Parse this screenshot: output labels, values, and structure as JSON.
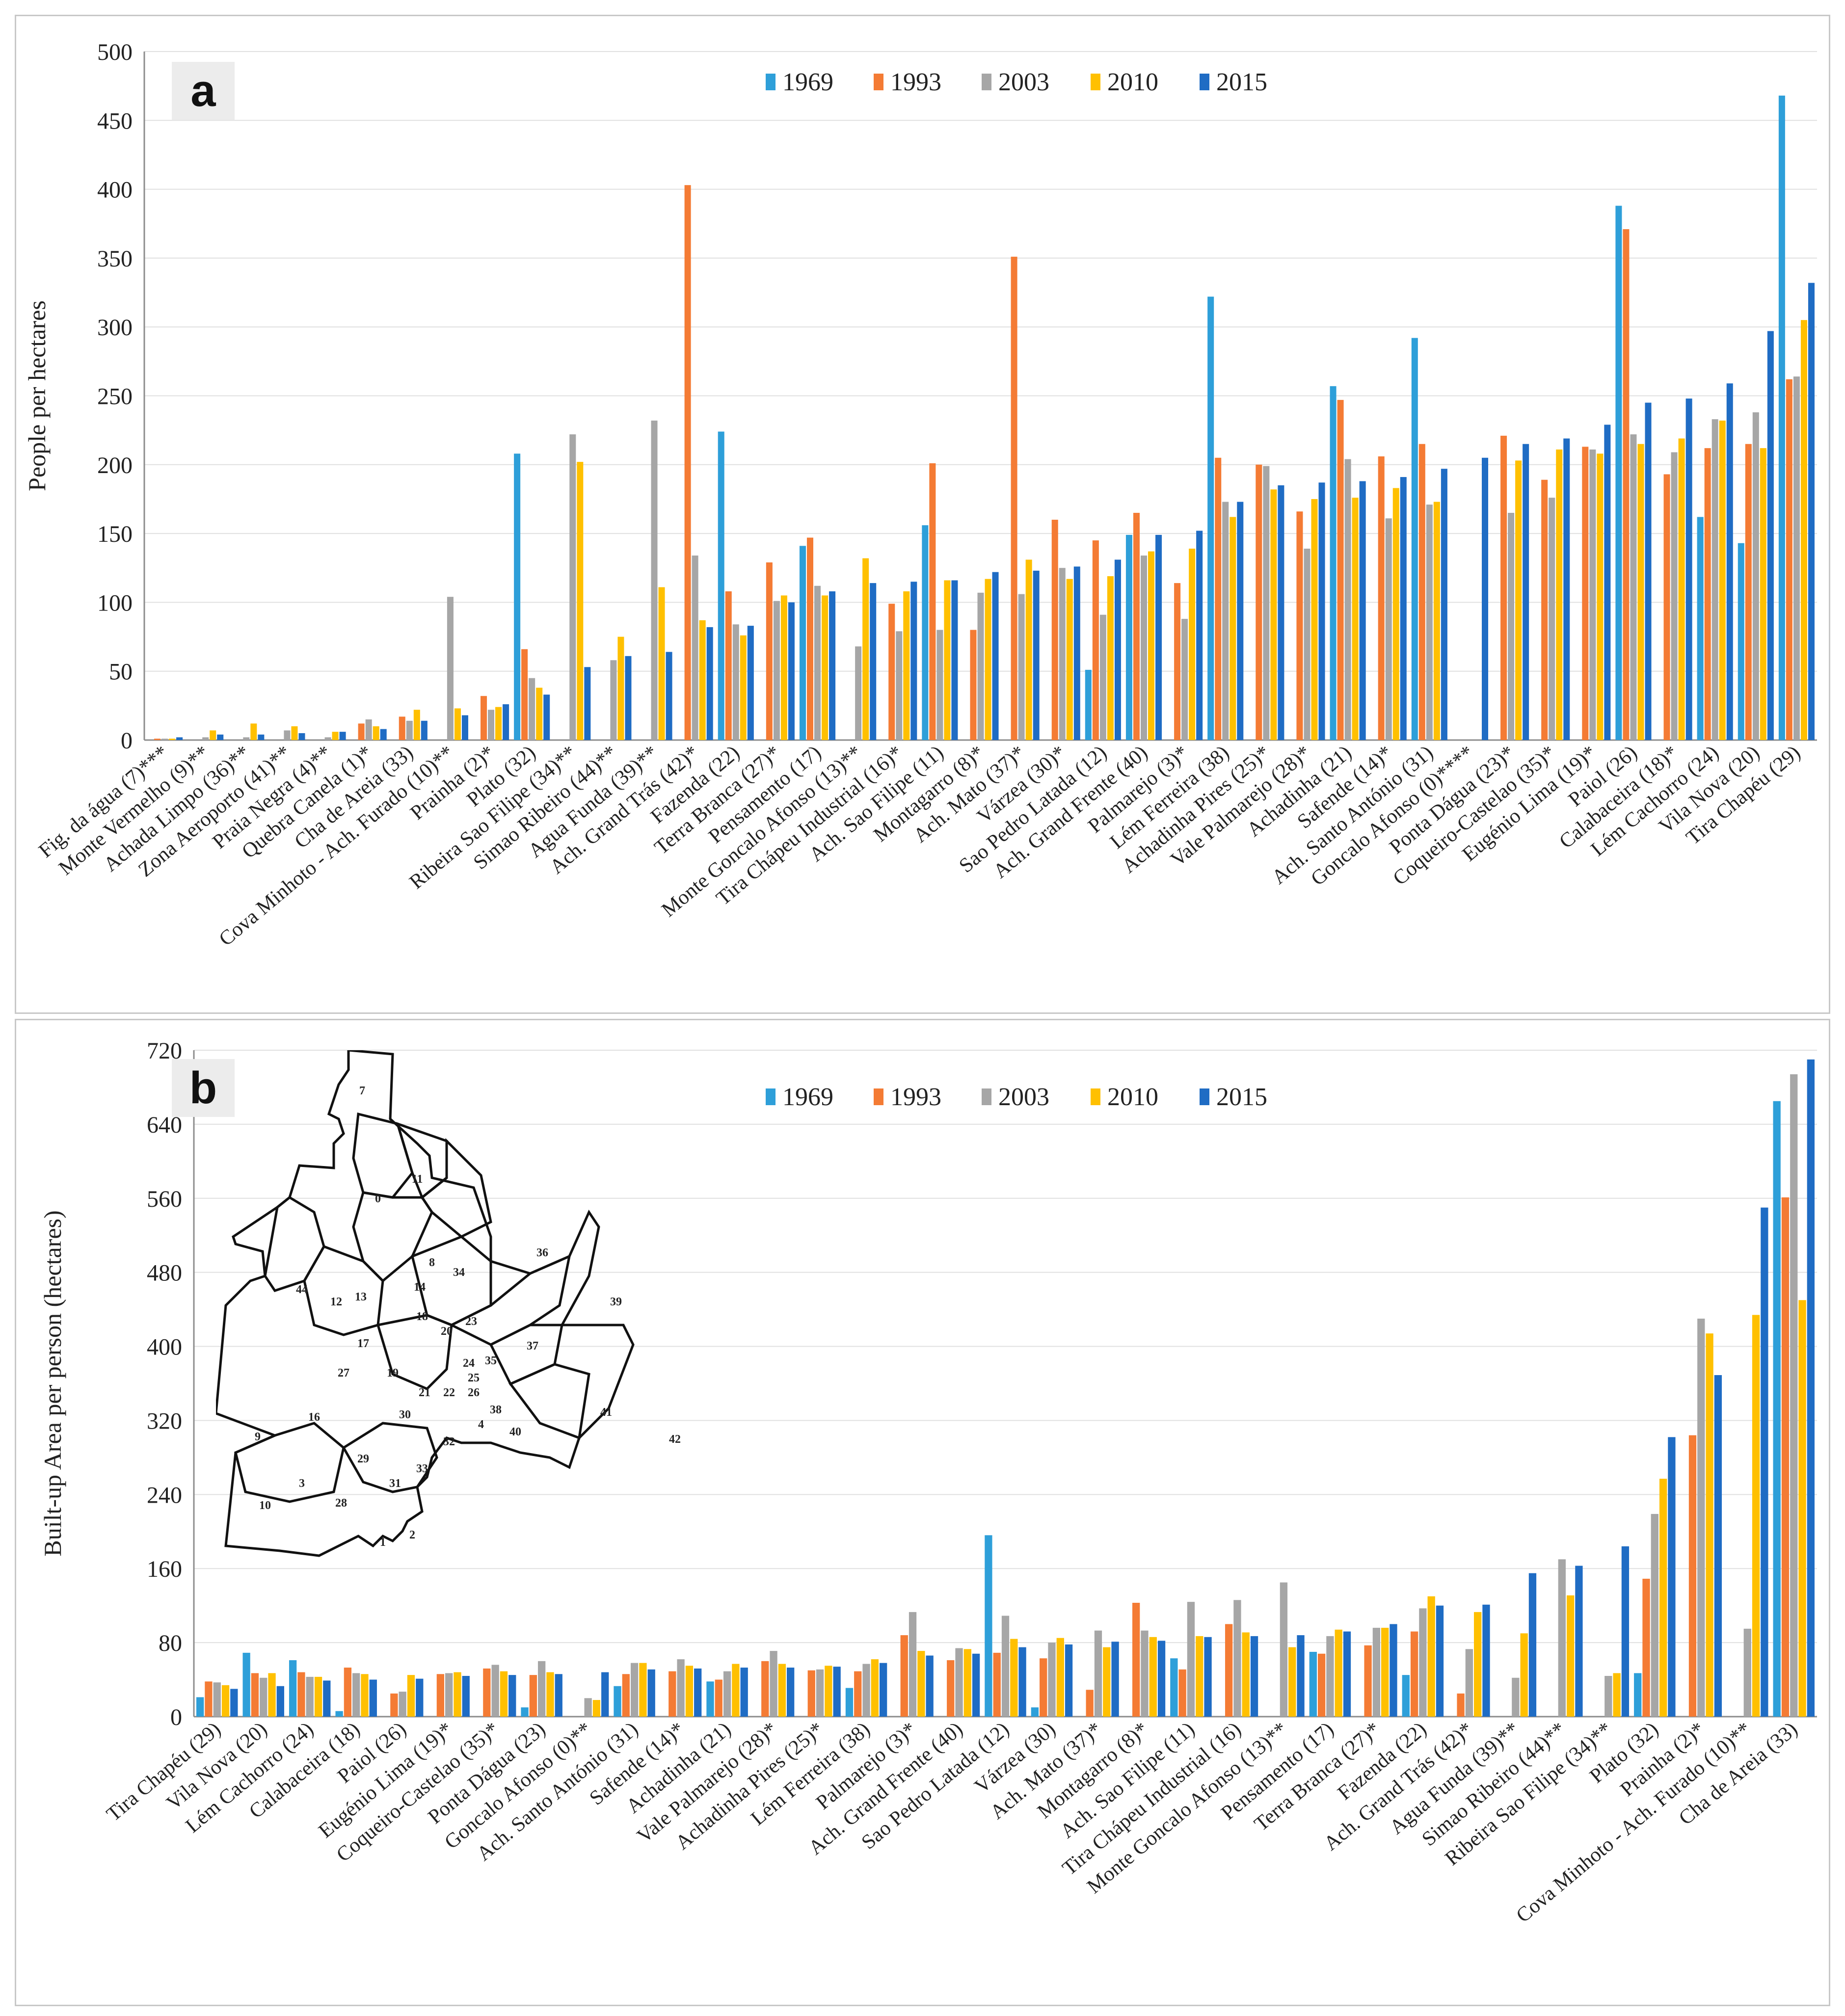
{
  "colors": {
    "1969": "#2e9fd9",
    "1993": "#f47b34",
    "2003": "#a6a6a6",
    "2010": "#ffc000",
    "2015": "#1f6cc4"
  },
  "chart_data": [
    {
      "panel": "a",
      "type": "bar",
      "ylabel": "People per hectares",
      "xlabel": "",
      "ylim": [
        0,
        500
      ],
      "yticks": [
        0,
        50,
        100,
        150,
        200,
        250,
        300,
        350,
        400,
        450,
        500
      ],
      "legend_position": "top-center",
      "series_names": [
        "1969",
        "1993",
        "2003",
        "2010",
        "2015"
      ],
      "categories": [
        "Fig. da água (7)***",
        "Monte Vermelho (9)**",
        "Achada Limpo (36)**",
        "Zona Aeroporto (41)**",
        "Praia Negra (4)**",
        "Quebra Canela (1)*",
        "Cha de Areia (33)",
        "Cova Minhoto - Ach. Furado (10)**",
        "Prainha (2)*",
        "Plato (32)",
        "Ribeira Sao Filipe (34)**",
        "Simao Ribeiro (44)**",
        "Agua Funda (39)**",
        "Ach. Grand Trás (42)*",
        "Fazenda (22)",
        "Terra Branca (27)*",
        "Pensamento (17)",
        "Monte Goncalo Afonso (13)**",
        "Tira Chápeu Industrial (16)*",
        "Ach. Sao Filipe (11)",
        "Montagarro (8)*",
        "Ach. Mato (37)*",
        "Várzea (30)*",
        "Sao Pedro Latada (12)",
        "Ach. Grand Frente (40)",
        "Palmarejo (3)*",
        "Lém Ferreira (38)",
        "Achadinha Pires (25)*",
        "Vale Palmarejo (28)*",
        "Achadinha (21)",
        "Safende (14)*",
        "Ach. Santo António (31)",
        "Goncalo Afonso (0)****",
        "Ponta Dágua (23)*",
        "Coqueiro-Castelao (35)*",
        "Eugénio Lima (19)*",
        "Paiol (26)",
        "Calabaceira (18)*",
        "Lém Cachorro (24)",
        "Vila Nova (20)",
        "Tira Chapéu (29)"
      ],
      "series": [
        {
          "name": "1969",
          "values": [
            0,
            0,
            0,
            0,
            0,
            0,
            0,
            0,
            0,
            208,
            0,
            0,
            0,
            0,
            224,
            0,
            141,
            0,
            0,
            156,
            0,
            0,
            0,
            51,
            149,
            0,
            322,
            0,
            0,
            257,
            0,
            292,
            0,
            0,
            0,
            0,
            388,
            0,
            162,
            143,
            468
          ]
        },
        {
          "name": "1993",
          "values": [
            1,
            0,
            0,
            0,
            0,
            12,
            17,
            0,
            32,
            66,
            0,
            0,
            0,
            403,
            108,
            129,
            147,
            0,
            99,
            201,
            80,
            351,
            160,
            145,
            165,
            114,
            205,
            200,
            166,
            247,
            206,
            215,
            0,
            221,
            189,
            213,
            371,
            193,
            212,
            215,
            262
          ]
        },
        {
          "name": "2003",
          "values": [
            1,
            2,
            2,
            7,
            2,
            15,
            14,
            104,
            22,
            45,
            222,
            58,
            232,
            134,
            84,
            101,
            112,
            68,
            79,
            80,
            107,
            106,
            125,
            91,
            134,
            88,
            173,
            199,
            139,
            204,
            161,
            171,
            0,
            165,
            176,
            211,
            222,
            209,
            233,
            238,
            264
          ]
        },
        {
          "name": "2010",
          "values": [
            1,
            7,
            12,
            10,
            6,
            10,
            22,
            23,
            24,
            38,
            202,
            75,
            111,
            87,
            76,
            105,
            105,
            132,
            108,
            116,
            117,
            131,
            117,
            119,
            137,
            139,
            162,
            182,
            175,
            176,
            183,
            173,
            0,
            203,
            211,
            208,
            215,
            219,
            232,
            212,
            305
          ]
        },
        {
          "name": "2015",
          "values": [
            2,
            4,
            4,
            5,
            6,
            8,
            14,
            18,
            26,
            33,
            53,
            61,
            64,
            82,
            83,
            100,
            108,
            114,
            115,
            116,
            122,
            123,
            126,
            131,
            149,
            152,
            173,
            185,
            187,
            188,
            191,
            197,
            205,
            215,
            219,
            229,
            245,
            248,
            259,
            297,
            332
          ]
        }
      ]
    },
    {
      "panel": "b",
      "type": "bar",
      "ylabel": "Built-up Area per person (hectares)",
      "xlabel": "",
      "ylim": [
        0,
        720
      ],
      "yticks": [
        0,
        80,
        160,
        240,
        320,
        400,
        480,
        560,
        640,
        720
      ],
      "legend_position": "top-center",
      "series_names": [
        "1969",
        "1993",
        "2003",
        "2010",
        "2015"
      ],
      "categories": [
        "Tira Chapéu (29)",
        "Vila Nova (20)",
        "Lém Cachorro (24)",
        "Calabaceira (18)",
        "Paiol (26)",
        "Eugénio Lima (19)*",
        "Coqueiro-Castelao (35)*",
        "Ponta Dágua (23)",
        "Goncalo Afonso (0)**",
        "Ach. Santo António (31)",
        "Safende (14)*",
        "Achadinha (21)",
        "Vale Palmarejo (28)*",
        "Achadinha Pires (25)*",
        "Lém Ferreira (38)",
        "Palmarejo (3)*",
        "Ach. Grand Frente (40)",
        "Sao Pedro Latada (12)",
        "Várzea (30)",
        "Ach. Mato (37)*",
        "Montagarro (8)*",
        "Ach. Sao Filipe (11)",
        "Tira Chápeu Industrial (16)",
        "Monte Goncalo Afonso (13)**",
        "Pensamento (17)",
        "Terra Branca (27)*",
        "Fazenda (22)",
        "Ach. Grand Trás (42)*",
        "Agua Funda (39)**",
        "Simao Ribeiro (44)**",
        "Ribeira Sao Filipe (34)**",
        "Plato (32)",
        "Prainha (2)*",
        "Cova Minhoto - Ach. Furado (10)**",
        "Cha de Areia (33)"
      ],
      "series": [
        {
          "name": "1969",
          "values": [
            21,
            69,
            61,
            6,
            0,
            0,
            0,
            10,
            0,
            33,
            0,
            38,
            0,
            0,
            31,
            0,
            0,
            196,
            10,
            0,
            0,
            63,
            0,
            0,
            70,
            0,
            45,
            0,
            0,
            0,
            0,
            47,
            0,
            0,
            665
          ]
        },
        {
          "name": "1993",
          "values": [
            38,
            47,
            48,
            53,
            25,
            46,
            52,
            45,
            0,
            46,
            49,
            40,
            60,
            50,
            49,
            88,
            61,
            69,
            63,
            29,
            123,
            51,
            100,
            0,
            68,
            77,
            92,
            25,
            0,
            0,
            0,
            149,
            304,
            0,
            561
          ]
        },
        {
          "name": "2003",
          "values": [
            37,
            42,
            43,
            47,
            27,
            47,
            56,
            60,
            20,
            58,
            62,
            49,
            71,
            51,
            57,
            113,
            74,
            109,
            80,
            93,
            93,
            124,
            126,
            145,
            87,
            96,
            117,
            73,
            42,
            170,
            44,
            219,
            430,
            95,
            694
          ]
        },
        {
          "name": "2010",
          "values": [
            34,
            47,
            43,
            46,
            45,
            48,
            49,
            48,
            18,
            58,
            55,
            57,
            57,
            55,
            62,
            71,
            73,
            84,
            85,
            75,
            86,
            87,
            91,
            75,
            94,
            96,
            130,
            113,
            90,
            131,
            47,
            257,
            414,
            434,
            450
          ]
        },
        {
          "name": "2015",
          "values": [
            30,
            33,
            39,
            40,
            41,
            44,
            45,
            46,
            48,
            51,
            52,
            53,
            53,
            54,
            58,
            66,
            68,
            75,
            78,
            81,
            82,
            86,
            87,
            88,
            92,
            100,
            120,
            121,
            155,
            163,
            184,
            302,
            369,
            550,
            710
          ]
        }
      ]
    }
  ],
  "panels": {
    "a": {
      "tag": "a"
    },
    "b": {
      "tag": "b"
    }
  },
  "inset_map": {
    "zones": [
      "7",
      "11",
      "0",
      "36",
      "44",
      "12",
      "13",
      "14",
      "8",
      "34",
      "39",
      "18",
      "20",
      "23",
      "17",
      "37",
      "27",
      "19",
      "21",
      "22",
      "24",
      "35",
      "25",
      "26",
      "16",
      "30",
      "9",
      "38",
      "41",
      "40",
      "4",
      "32",
      "42",
      "29",
      "33",
      "3",
      "31",
      "10",
      "28",
      "2",
      "1"
    ]
  }
}
